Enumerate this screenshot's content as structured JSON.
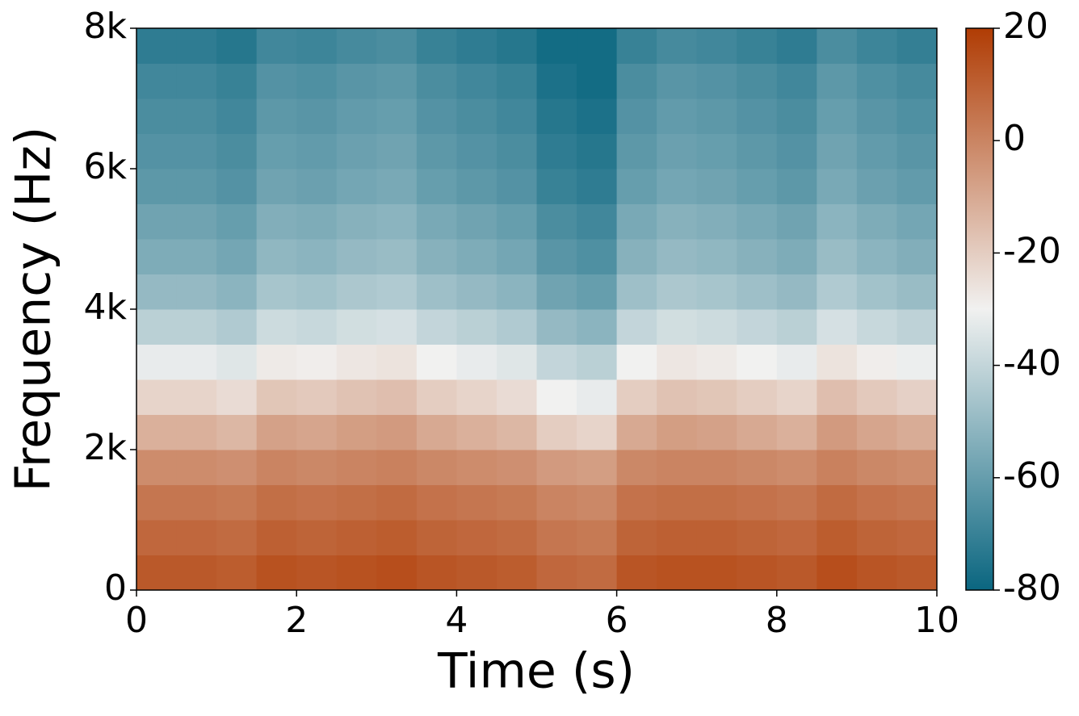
{
  "chart_data": {
    "type": "heatmap",
    "xlabel": "Time (s)",
    "ylabel": "Frequency (Hz)",
    "xlim": [
      0,
      10
    ],
    "xticks": [
      0,
      2,
      4,
      6,
      8,
      10
    ],
    "ylim": [
      0,
      8000
    ],
    "yticks": [
      0,
      {
        "value": 2000,
        "label": "2k"
      },
      {
        "value": 4000,
        "label": "4k"
      },
      {
        "value": 6000,
        "label": "6k"
      },
      {
        "value": 8000,
        "label": "8k"
      }
    ],
    "clim": [
      -80,
      20
    ],
    "cticks": [
      -80,
      -60,
      -40,
      -20,
      0,
      20
    ],
    "colormap": [
      "#0a6680",
      "#f1f1f0",
      "#b03c04"
    ],
    "values": [
      [
        12,
        12,
        11,
        14,
        13,
        14,
        15,
        13,
        12,
        11,
        8,
        7,
        13,
        14,
        14,
        13,
        12,
        15,
        13,
        12
      ],
      [
        8,
        8,
        7,
        10,
        9,
        10,
        11,
        9,
        8,
        7,
        4,
        3,
        9,
        10,
        10,
        9,
        8,
        11,
        9,
        8
      ],
      [
        4,
        4,
        3,
        6,
        5,
        6,
        7,
        5,
        4,
        3,
        0,
        -1,
        5,
        6,
        6,
        5,
        4,
        7,
        5,
        4
      ],
      [
        -2,
        -2,
        -3,
        0,
        -1,
        0,
        1,
        -1,
        -2,
        -3,
        -6,
        -7,
        -1,
        0,
        0,
        -1,
        -2,
        1,
        -1,
        -2
      ],
      [
        -12,
        -12,
        -14,
        -8,
        -9,
        -7,
        -6,
        -10,
        -12,
        -14,
        -20,
        -22,
        -10,
        -7,
        -8,
        -10,
        -12,
        -6,
        -9,
        -11
      ],
      [
        -22,
        -22,
        -24,
        -18,
        -19,
        -17,
        -16,
        -20,
        -22,
        -24,
        -30,
        -32,
        -20,
        -17,
        -18,
        -20,
        -22,
        -16,
        -19,
        -21
      ],
      [
        -32,
        -32,
        -34,
        -28,
        -29,
        -27,
        -26,
        -30,
        -32,
        -34,
        -40,
        -42,
        -30,
        -27,
        -28,
        -30,
        -32,
        -26,
        -29,
        -31
      ],
      [
        -42,
        -42,
        -44,
        -38,
        -39,
        -37,
        -36,
        -40,
        -42,
        -44,
        -50,
        -52,
        -40,
        -37,
        -38,
        -40,
        -42,
        -36,
        -39,
        -41
      ],
      [
        -50,
        -50,
        -52,
        -46,
        -47,
        -45,
        -44,
        -48,
        -50,
        -52,
        -58,
        -60,
        -48,
        -45,
        -46,
        -48,
        -50,
        -44,
        -47,
        -49
      ],
      [
        -55,
        -55,
        -57,
        -51,
        -52,
        -50,
        -49,
        -53,
        -55,
        -57,
        -63,
        -65,
        -53,
        -50,
        -51,
        -53,
        -55,
        -49,
        -52,
        -54
      ],
      [
        -58,
        -58,
        -60,
        -54,
        -55,
        -53,
        -52,
        -56,
        -58,
        -60,
        -66,
        -68,
        -56,
        -53,
        -54,
        -56,
        -58,
        -52,
        -55,
        -57
      ],
      [
        -62,
        -62,
        -64,
        -58,
        -59,
        -57,
        -56,
        -60,
        -62,
        -64,
        -70,
        -72,
        -60,
        -57,
        -58,
        -60,
        -62,
        -56,
        -59,
        -61
      ],
      [
        -64,
        -64,
        -66,
        -60,
        -61,
        -59,
        -58,
        -62,
        -64,
        -66,
        -72,
        -74,
        -62,
        -59,
        -60,
        -62,
        -64,
        -58,
        -61,
        -63
      ],
      [
        -66,
        -66,
        -68,
        -62,
        -63,
        -61,
        -60,
        -64,
        -66,
        -68,
        -74,
        -76,
        -64,
        -61,
        -62,
        -64,
        -66,
        -60,
        -63,
        -65
      ],
      [
        -68,
        -68,
        -70,
        -64,
        -65,
        -63,
        -62,
        -66,
        -68,
        -70,
        -76,
        -78,
        -66,
        -63,
        -64,
        -66,
        -68,
        -62,
        -65,
        -67
      ],
      [
        -72,
        -72,
        -74,
        -68,
        -69,
        -67,
        -66,
        -70,
        -72,
        -74,
        -78,
        -78,
        -70,
        -67,
        -68,
        -70,
        -72,
        -66,
        -69,
        -71
      ]
    ]
  }
}
